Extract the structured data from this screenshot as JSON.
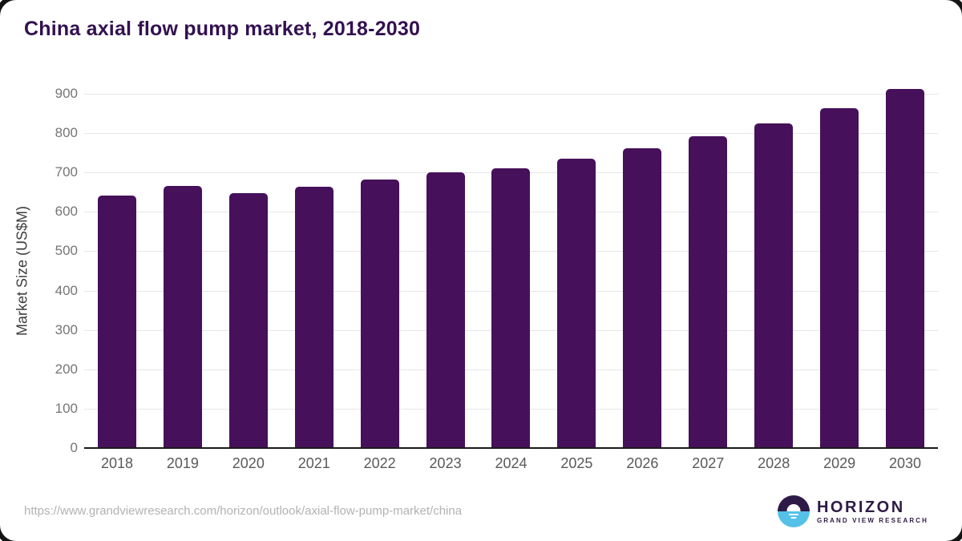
{
  "chart_data": {
    "type": "bar",
    "title": "China axial flow pump market, 2018-2030",
    "categories": [
      "2018",
      "2019",
      "2020",
      "2021",
      "2022",
      "2023",
      "2024",
      "2025",
      "2026",
      "2027",
      "2028",
      "2029",
      "2030"
    ],
    "values": [
      641,
      666,
      648,
      664,
      683,
      700,
      711,
      735,
      762,
      793,
      824,
      864,
      913
    ],
    "xlabel": "",
    "ylabel": "Market Size (US$M)",
    "ylim": [
      0,
      900
    ],
    "ytick_step": 100,
    "grid": true,
    "legend": "none",
    "bar_color": "#46105a"
  },
  "colors": {
    "title": "#331150",
    "gridline": "#e6e6e6",
    "axis_line": "#1a1a1a",
    "ytick_label": "#757575",
    "xtick_label": "#595959",
    "url_text": "#b2b2b2",
    "logo_purple": "#2e1a47",
    "logo_blue": "#56c1e8"
  },
  "footer": {
    "source_url": "https://www.grandviewresearch.com/horizon/outlook/axial-flow-pump-market/china",
    "logo": {
      "name": "HORIZON",
      "tagline": "GRAND VIEW RESEARCH"
    }
  }
}
